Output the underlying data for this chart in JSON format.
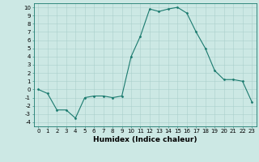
{
  "x": [
    0,
    1,
    2,
    3,
    4,
    5,
    6,
    7,
    8,
    9,
    10,
    11,
    12,
    13,
    14,
    15,
    16,
    17,
    18,
    19,
    20,
    21,
    22,
    23
  ],
  "y": [
    0,
    -0.5,
    -2.5,
    -2.5,
    -3.5,
    -1.0,
    -0.8,
    -0.8,
    -1.0,
    -0.8,
    4.0,
    6.5,
    9.8,
    9.5,
    9.8,
    10.0,
    9.3,
    7.0,
    5.0,
    2.3,
    1.2,
    1.2,
    1.0,
    -1.5
  ],
  "line_color": "#1a7a6e",
  "marker": "D",
  "marker_size": 1.5,
  "background_color": "#cce8e4",
  "grid_color": "#aacfcb",
  "xlabel": "Humidex (Indice chaleur)",
  "xlim": [
    -0.5,
    23.5
  ],
  "ylim": [
    -4.5,
    10.5
  ],
  "xticks": [
    0,
    1,
    2,
    3,
    4,
    5,
    6,
    7,
    8,
    9,
    10,
    11,
    12,
    13,
    14,
    15,
    16,
    17,
    18,
    19,
    20,
    21,
    22,
    23
  ],
  "yticks": [
    -4,
    -3,
    -2,
    -1,
    0,
    1,
    2,
    3,
    4,
    5,
    6,
    7,
    8,
    9,
    10
  ],
  "tick_fontsize": 5.0,
  "label_fontsize": 6.5
}
